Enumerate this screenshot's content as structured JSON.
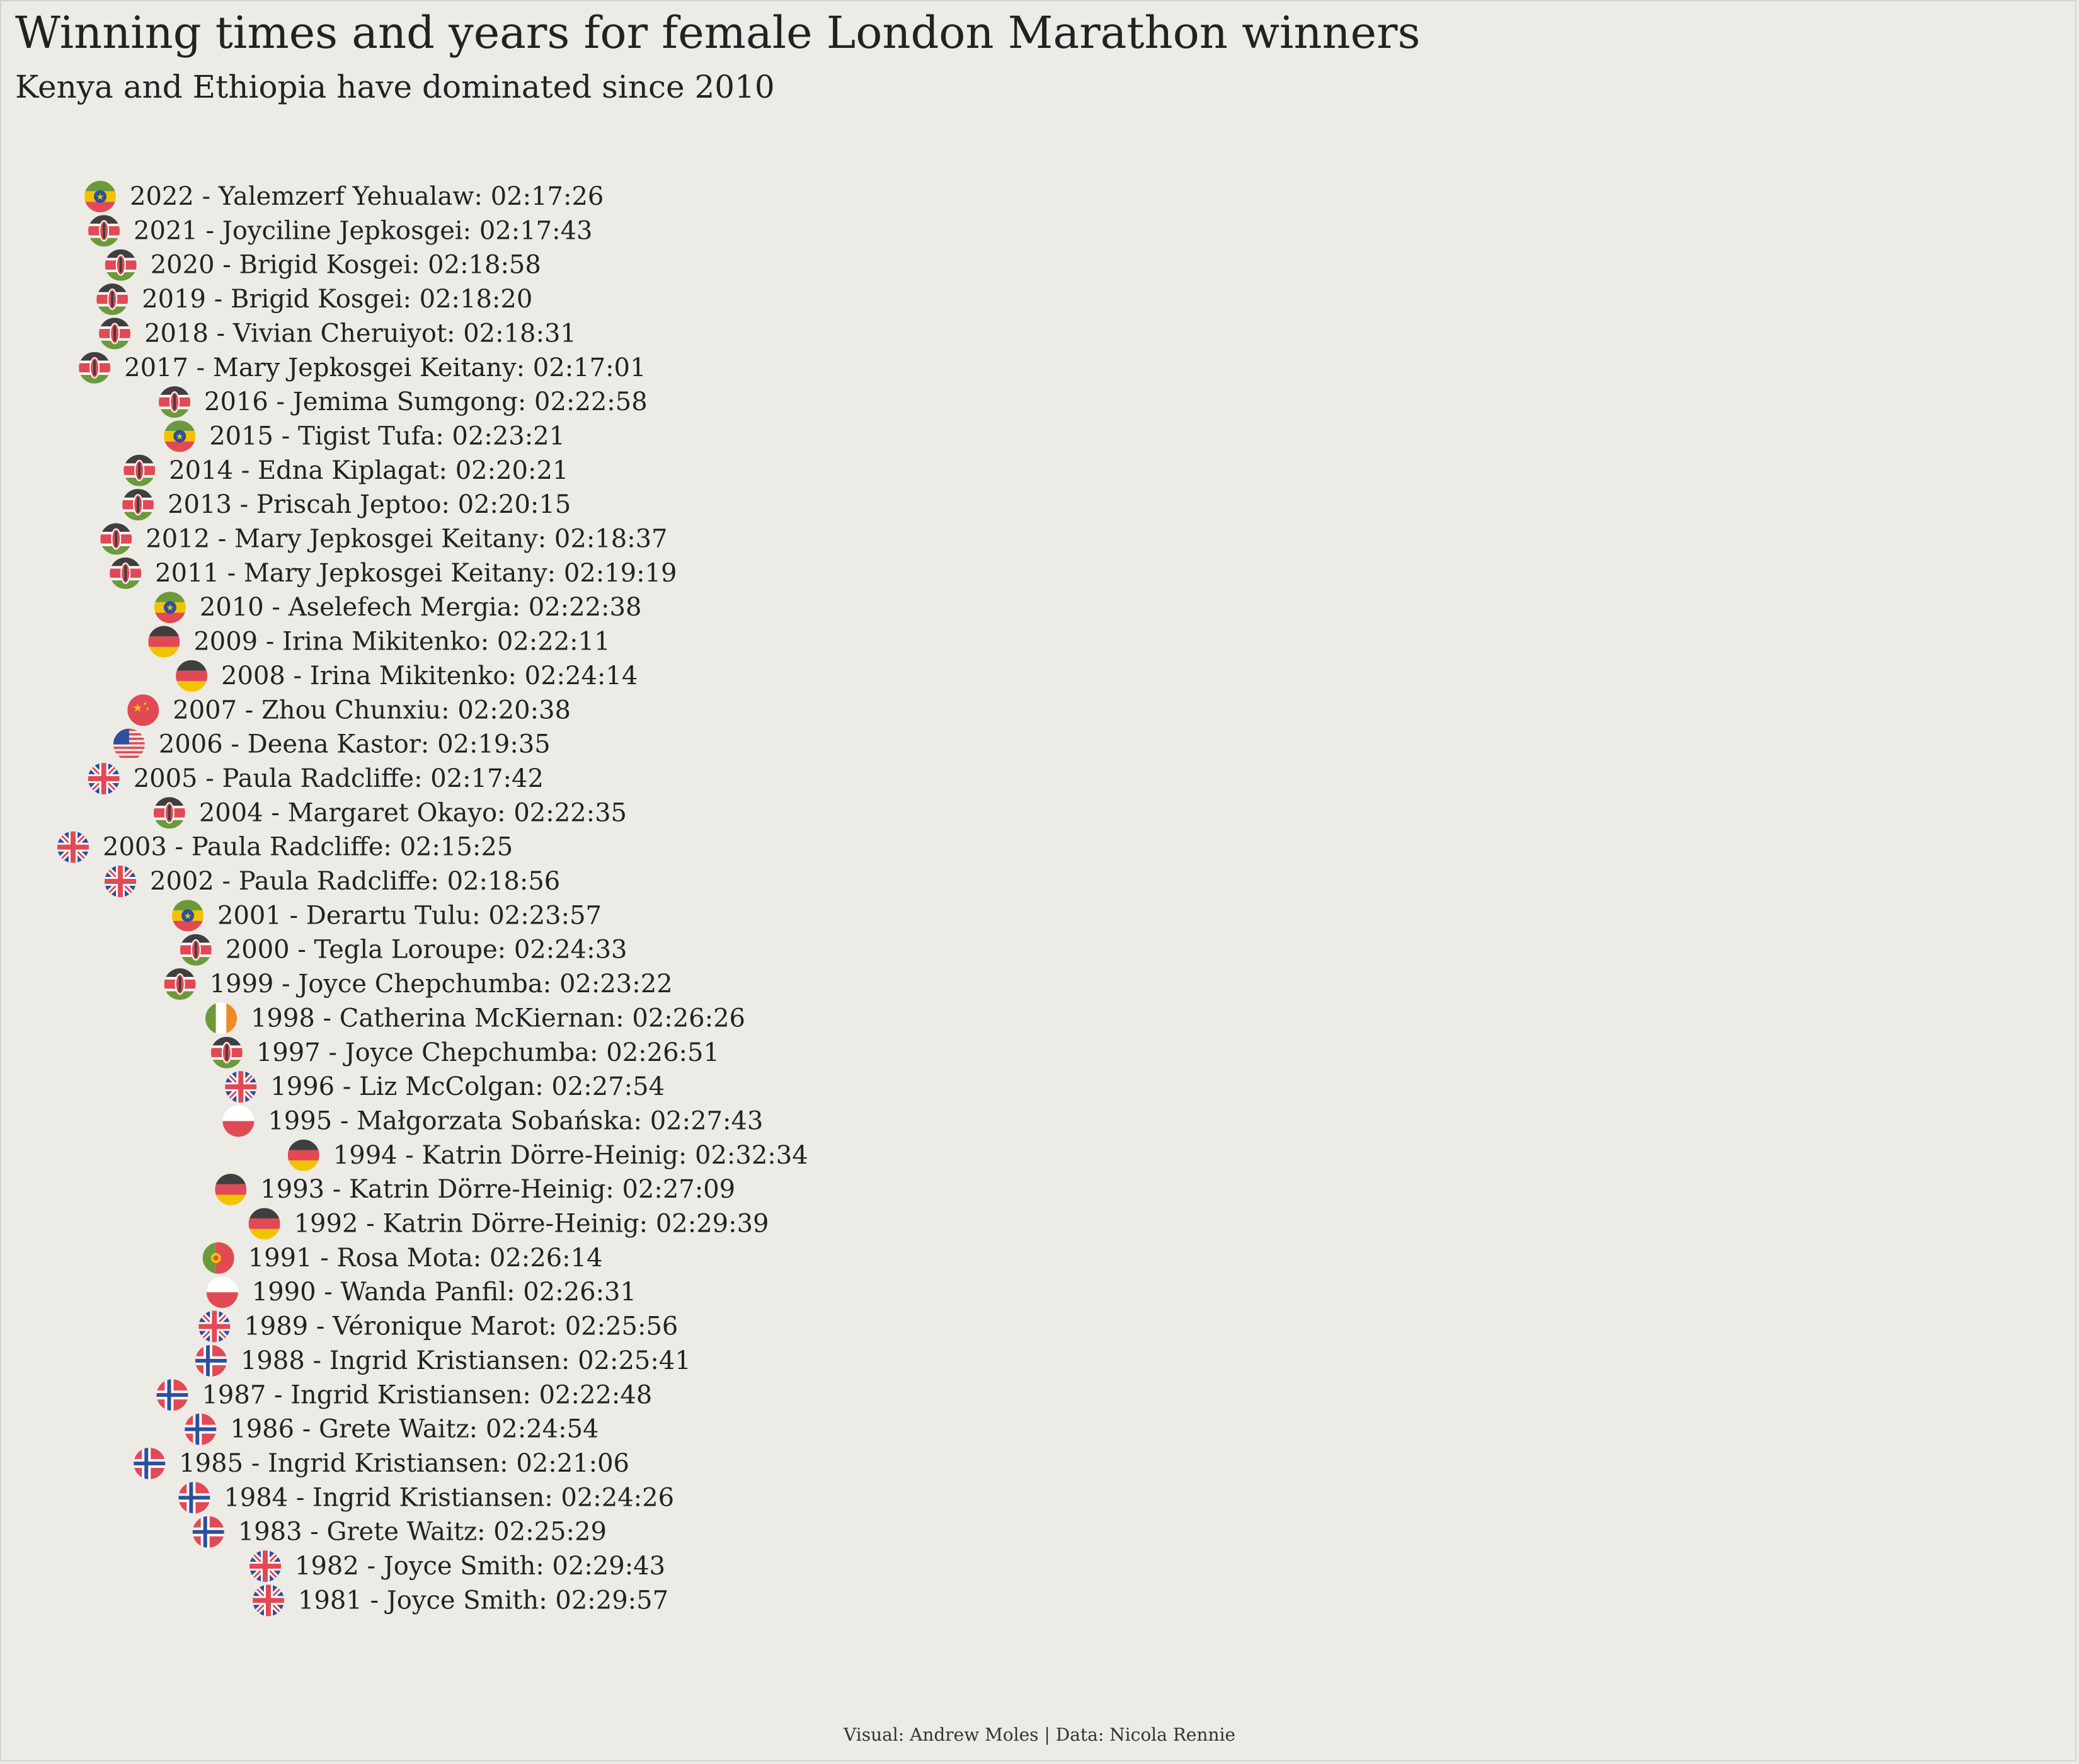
{
  "title": "Winning times and years for female London Marathon winners",
  "subtitle": "Kenya and Ethiopia have dominated since 2010",
  "caption": "Visual: Andrew Moles | Data: Nicola Rennie",
  "colors": {
    "background": "#ecebe6",
    "text": "#222222",
    "flag_red": "#e14a55",
    "flag_green": "#6b9a3a",
    "flag_black": "#3f3f3f",
    "flag_yellow": "#f2c400",
    "flag_blue": "#2c4f9e",
    "flag_orange": "#f08a24"
  },
  "chart_data": {
    "type": "scatter",
    "x_label": "",
    "y_label": "",
    "x_unit": "winning time (h:mm:ss)",
    "y_unit": "year",
    "x_range": [
      "02:15:00",
      "02:33:00"
    ],
    "y_range": [
      1981,
      2022
    ],
    "marker": "country-flag-icon",
    "points": [
      {
        "year": 2022,
        "name": "Yalemzerf Yehualaw",
        "time": "02:17:26",
        "country": "Ethiopia",
        "icon": "ethiopia-flag-icon"
      },
      {
        "year": 2021,
        "name": "Joyciline Jepkosgei",
        "time": "02:17:43",
        "country": "Kenya",
        "icon": "kenya-flag-icon"
      },
      {
        "year": 2020,
        "name": "Brigid Kosgei",
        "time": "02:18:58",
        "country": "Kenya",
        "icon": "kenya-flag-icon"
      },
      {
        "year": 2019,
        "name": "Brigid Kosgei",
        "time": "02:18:20",
        "country": "Kenya",
        "icon": "kenya-flag-icon"
      },
      {
        "year": 2018,
        "name": "Vivian Cheruiyot",
        "time": "02:18:31",
        "country": "Kenya",
        "icon": "kenya-flag-icon"
      },
      {
        "year": 2017,
        "name": "Mary Jepkosgei Keitany",
        "time": "02:17:01",
        "country": "Kenya",
        "icon": "kenya-flag-icon"
      },
      {
        "year": 2016,
        "name": "Jemima Sumgong",
        "time": "02:22:58",
        "country": "Kenya",
        "icon": "kenya-flag-icon"
      },
      {
        "year": 2015,
        "name": "Tigist Tufa",
        "time": "02:23:21",
        "country": "Ethiopia",
        "icon": "ethiopia-flag-icon"
      },
      {
        "year": 2014,
        "name": "Edna Kiplagat",
        "time": "02:20:21",
        "country": "Kenya",
        "icon": "kenya-flag-icon"
      },
      {
        "year": 2013,
        "name": "Priscah Jeptoo",
        "time": "02:20:15",
        "country": "Kenya",
        "icon": "kenya-flag-icon"
      },
      {
        "year": 2012,
        "name": "Mary Jepkosgei Keitany",
        "time": "02:18:37",
        "country": "Kenya",
        "icon": "kenya-flag-icon"
      },
      {
        "year": 2011,
        "name": "Mary Jepkosgei Keitany",
        "time": "02:19:19",
        "country": "Kenya",
        "icon": "kenya-flag-icon"
      },
      {
        "year": 2010,
        "name": "Aselefech Mergia",
        "time": "02:22:38",
        "country": "Ethiopia",
        "icon": "ethiopia-flag-icon"
      },
      {
        "year": 2009,
        "name": "Irina Mikitenko",
        "time": "02:22:11",
        "country": "Germany",
        "icon": "germany-flag-icon"
      },
      {
        "year": 2008,
        "name": "Irina Mikitenko",
        "time": "02:24:14",
        "country": "Germany",
        "icon": "germany-flag-icon"
      },
      {
        "year": 2007,
        "name": "Zhou Chunxiu",
        "time": "02:20:38",
        "country": "China",
        "icon": "china-flag-icon"
      },
      {
        "year": 2006,
        "name": "Deena Kastor",
        "time": "02:19:35",
        "country": "United States",
        "icon": "usa-flag-icon"
      },
      {
        "year": 2005,
        "name": "Paula Radcliffe",
        "time": "02:17:42",
        "country": "United Kingdom",
        "icon": "uk-flag-icon"
      },
      {
        "year": 2004,
        "name": "Margaret Okayo",
        "time": "02:22:35",
        "country": "Kenya",
        "icon": "kenya-flag-icon"
      },
      {
        "year": 2003,
        "name": "Paula Radcliffe",
        "time": "02:15:25",
        "country": "United Kingdom",
        "icon": "uk-flag-icon"
      },
      {
        "year": 2002,
        "name": "Paula Radcliffe",
        "time": "02:18:56",
        "country": "United Kingdom",
        "icon": "uk-flag-icon"
      },
      {
        "year": 2001,
        "name": "Derartu Tulu",
        "time": "02:23:57",
        "country": "Ethiopia",
        "icon": "ethiopia-flag-icon"
      },
      {
        "year": 2000,
        "name": "Tegla Loroupe",
        "time": "02:24:33",
        "country": "Kenya",
        "icon": "kenya-flag-icon"
      },
      {
        "year": 1999,
        "name": "Joyce Chepchumba",
        "time": "02:23:22",
        "country": "Kenya",
        "icon": "kenya-flag-icon"
      },
      {
        "year": 1998,
        "name": "Catherina McKiernan",
        "time": "02:26:26",
        "country": "Ireland",
        "icon": "ireland-flag-icon"
      },
      {
        "year": 1997,
        "name": "Joyce Chepchumba",
        "time": "02:26:51",
        "country": "Kenya",
        "icon": "kenya-flag-icon"
      },
      {
        "year": 1996,
        "name": "Liz McColgan",
        "time": "02:27:54",
        "country": "United Kingdom",
        "icon": "uk-flag-icon"
      },
      {
        "year": 1995,
        "name": "Małgorzata Sobańska",
        "time": "02:27:43",
        "country": "Poland",
        "icon": "poland-flag-icon"
      },
      {
        "year": 1994,
        "name": "Katrin Dörre-Heinig",
        "time": "02:32:34",
        "country": "Germany",
        "icon": "germany-flag-icon"
      },
      {
        "year": 1993,
        "name": "Katrin Dörre-Heinig",
        "time": "02:27:09",
        "country": "Germany",
        "icon": "germany-flag-icon"
      },
      {
        "year": 1992,
        "name": "Katrin Dörre-Heinig",
        "time": "02:29:39",
        "country": "Germany",
        "icon": "germany-flag-icon"
      },
      {
        "year": 1991,
        "name": "Rosa Mota",
        "time": "02:26:14",
        "country": "Portugal",
        "icon": "portugal-flag-icon"
      },
      {
        "year": 1990,
        "name": "Wanda Panfil",
        "time": "02:26:31",
        "country": "Poland",
        "icon": "poland-flag-icon"
      },
      {
        "year": 1989,
        "name": "Véronique Marot",
        "time": "02:25:56",
        "country": "United Kingdom",
        "icon": "uk-flag-icon"
      },
      {
        "year": 1988,
        "name": "Ingrid Kristiansen",
        "time": "02:25:41",
        "country": "Norway",
        "icon": "norway-flag-icon"
      },
      {
        "year": 1987,
        "name": "Ingrid Kristiansen",
        "time": "02:22:48",
        "country": "Norway",
        "icon": "norway-flag-icon"
      },
      {
        "year": 1986,
        "name": "Grete Waitz",
        "time": "02:24:54",
        "country": "Norway",
        "icon": "norway-flag-icon"
      },
      {
        "year": 1985,
        "name": "Ingrid Kristiansen",
        "time": "02:21:06",
        "country": "Norway",
        "icon": "norway-flag-icon"
      },
      {
        "year": 1984,
        "name": "Ingrid Kristiansen",
        "time": "02:24:26",
        "country": "Norway",
        "icon": "norway-flag-icon"
      },
      {
        "year": 1983,
        "name": "Grete Waitz",
        "time": "02:25:29",
        "country": "Norway",
        "icon": "norway-flag-icon"
      },
      {
        "year": 1982,
        "name": "Joyce Smith",
        "time": "02:29:43",
        "country": "United Kingdom",
        "icon": "uk-flag-icon"
      },
      {
        "year": 1981,
        "name": "Joyce Smith",
        "time": "02:29:57",
        "country": "United Kingdom",
        "icon": "uk-flag-icon"
      }
    ]
  }
}
